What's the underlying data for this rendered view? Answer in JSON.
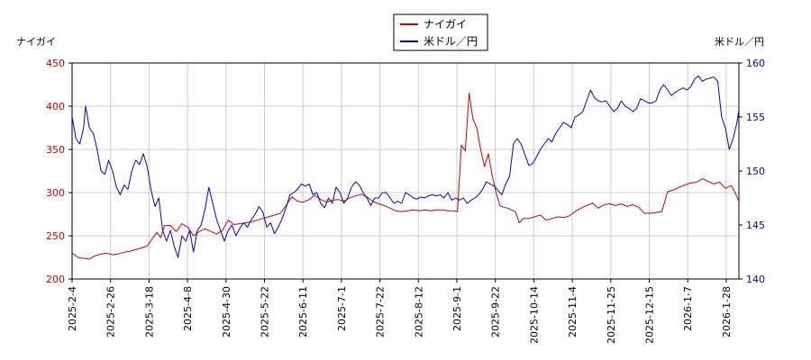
{
  "chart_data": {
    "type": "line",
    "left_axis_title": "ナイガイ",
    "right_axis_title": "米ドル／円",
    "left_axis": {
      "range": [
        200,
        450
      ],
      "ticks": [
        "200",
        "250",
        "300",
        "350",
        "400",
        "450"
      ],
      "color": "#cc0000"
    },
    "right_axis": {
      "range": [
        140,
        160
      ],
      "ticks": [
        "140",
        "145",
        "150",
        "155",
        "160"
      ],
      "color": "#0000cc"
    },
    "x_ticks": [
      "2025-2-4",
      "2025-2-26",
      "2025-3-18",
      "2025-4-8",
      "2025-4-30",
      "2025-5-22",
      "2025-6-11",
      "2025-7-1",
      "2025-7-22",
      "2025-8-12",
      "2025-9-1",
      "2025-9-22",
      "2025-10-14",
      "2025-11-4",
      "2025-11-25",
      "2025-12-15",
      "2026-1-7",
      "2026-1-28"
    ],
    "grid": true,
    "legend": {
      "placement": "top-center"
    },
    "series": [
      {
        "name": "ナイガイ",
        "axis": "left",
        "color": "#cc0000",
        "points": [
          [
            0,
            230
          ],
          [
            3,
            225
          ],
          [
            6,
            224
          ],
          [
            9,
            223
          ],
          [
            12,
            227
          ],
          [
            15,
            229
          ],
          [
            18,
            230
          ],
          [
            21,
            228
          ],
          [
            24,
            229
          ],
          [
            27,
            231
          ],
          [
            30,
            232
          ],
          [
            33,
            234
          ],
          [
            36,
            236
          ],
          [
            39,
            238
          ],
          [
            42,
            248
          ],
          [
            44,
            254
          ],
          [
            46,
            248
          ],
          [
            48,
            262
          ],
          [
            51,
            262
          ],
          [
            54,
            255
          ],
          [
            57,
            264
          ],
          [
            60,
            260
          ],
          [
            63,
            250
          ],
          [
            66,
            255
          ],
          [
            69,
            258
          ],
          [
            72,
            255
          ],
          [
            75,
            252
          ],
          [
            78,
            256
          ],
          [
            81,
            268
          ],
          [
            84,
            263
          ],
          [
            87,
            264
          ],
          [
            90,
            265
          ],
          [
            93,
            266
          ],
          [
            96,
            268
          ],
          [
            99,
            270
          ],
          [
            102,
            272
          ],
          [
            105,
            274
          ],
          [
            108,
            276
          ],
          [
            111,
            285
          ],
          [
            114,
            295
          ],
          [
            117,
            290
          ],
          [
            120,
            289
          ],
          [
            123,
            292
          ],
          [
            126,
            297
          ],
          [
            129,
            292
          ],
          [
            132,
            289
          ],
          [
            135,
            291
          ],
          [
            138,
            292
          ],
          [
            141,
            290
          ],
          [
            144,
            294
          ],
          [
            147,
            296
          ],
          [
            150,
            298
          ],
          [
            153,
            295
          ],
          [
            156,
            290
          ],
          [
            159,
            287
          ],
          [
            162,
            285
          ],
          [
            165,
            282
          ],
          [
            168,
            279
          ],
          [
            171,
            278
          ],
          [
            174,
            279
          ],
          [
            177,
            280
          ],
          [
            180,
            279
          ],
          [
            183,
            280
          ],
          [
            186,
            279
          ],
          [
            189,
            280
          ],
          [
            192,
            280
          ],
          [
            195,
            279
          ],
          [
            198,
            279
          ],
          [
            200,
            278
          ],
          [
            202,
            355
          ],
          [
            204,
            348
          ],
          [
            206,
            415
          ],
          [
            208,
            385
          ],
          [
            210,
            375
          ],
          [
            212,
            350
          ],
          [
            214,
            330
          ],
          [
            216,
            345
          ],
          [
            218,
            320
          ],
          [
            220,
            300
          ],
          [
            222,
            285
          ],
          [
            224,
            283
          ],
          [
            226,
            282
          ],
          [
            228,
            280
          ],
          [
            230,
            278
          ],
          [
            232,
            265
          ],
          [
            234,
            270
          ],
          [
            237,
            270
          ],
          [
            240,
            272
          ],
          [
            243,
            274
          ],
          [
            246,
            268
          ],
          [
            249,
            270
          ],
          [
            252,
            272
          ],
          [
            255,
            271
          ],
          [
            258,
            273
          ],
          [
            261,
            278
          ],
          [
            264,
            282
          ],
          [
            267,
            285
          ],
          [
            270,
            288
          ],
          [
            273,
            282
          ],
          [
            276,
            286
          ],
          [
            279,
            287
          ],
          [
            282,
            285
          ],
          [
            285,
            287
          ],
          [
            288,
            284
          ],
          [
            291,
            286
          ],
          [
            294,
            283
          ],
          [
            297,
            276
          ],
          [
            300,
            276
          ],
          [
            303,
            277
          ],
          [
            306,
            278
          ],
          [
            309,
            301
          ],
          [
            312,
            303
          ],
          [
            315,
            306
          ],
          [
            318,
            309
          ],
          [
            321,
            311
          ],
          [
            324,
            312
          ],
          [
            327,
            316
          ],
          [
            330,
            313
          ],
          [
            333,
            310
          ],
          [
            336,
            312
          ],
          [
            339,
            305
          ],
          [
            342,
            308
          ],
          [
            344,
            300
          ],
          [
            346,
            290
          ]
        ]
      },
      {
        "name": "米ドル／円",
        "axis": "right",
        "color": "#0000cc",
        "points": [
          [
            0,
            155
          ],
          [
            2,
            153
          ],
          [
            4,
            152.5
          ],
          [
            6,
            154
          ],
          [
            7,
            156
          ],
          [
            9,
            154
          ],
          [
            11,
            153.5
          ],
          [
            13,
            152
          ],
          [
            15,
            150
          ],
          [
            17,
            149.7
          ],
          [
            19,
            151
          ],
          [
            21,
            150
          ],
          [
            23,
            148.5
          ],
          [
            25,
            147.8
          ],
          [
            27,
            148.7
          ],
          [
            29,
            148.3
          ],
          [
            31,
            150
          ],
          [
            33,
            151
          ],
          [
            35,
            150.6
          ],
          [
            37,
            151.6
          ],
          [
            39,
            150.4
          ],
          [
            41,
            148.2
          ],
          [
            43,
            146.7
          ],
          [
            45,
            147.5
          ],
          [
            47,
            144.5
          ],
          [
            49,
            143.5
          ],
          [
            51,
            144.5
          ],
          [
            53,
            143
          ],
          [
            55,
            142
          ],
          [
            57,
            144
          ],
          [
            59,
            143.5
          ],
          [
            61,
            144.5
          ],
          [
            63,
            142.5
          ],
          [
            65,
            144.5
          ],
          [
            67,
            145
          ],
          [
            69,
            146.5
          ],
          [
            71,
            148.5
          ],
          [
            73,
            147
          ],
          [
            75,
            145.5
          ],
          [
            77,
            144.5
          ],
          [
            79,
            143.5
          ],
          [
            81,
            144.5
          ],
          [
            83,
            145
          ],
          [
            85,
            144
          ],
          [
            87,
            144.7
          ],
          [
            89,
            145.2
          ],
          [
            91,
            144.8
          ],
          [
            93,
            145.5
          ],
          [
            95,
            146
          ],
          [
            97,
            146.7
          ],
          [
            99,
            146.2
          ],
          [
            101,
            144.8
          ],
          [
            103,
            145.2
          ],
          [
            105,
            144.2
          ],
          [
            107,
            144.8
          ],
          [
            109,
            145.6
          ],
          [
            111,
            146.6
          ],
          [
            113,
            147.8
          ],
          [
            115,
            148
          ],
          [
            117,
            148.3
          ],
          [
            119,
            148.8
          ],
          [
            121,
            148.6
          ],
          [
            123,
            148.8
          ],
          [
            125,
            147.8
          ],
          [
            127,
            148
          ],
          [
            129,
            147
          ],
          [
            131,
            146.6
          ],
          [
            133,
            147.5
          ],
          [
            135,
            147
          ],
          [
            137,
            148.5
          ],
          [
            139,
            148
          ],
          [
            141,
            147
          ],
          [
            143,
            147.5
          ],
          [
            145,
            148.5
          ],
          [
            147,
            149
          ],
          [
            149,
            148.7
          ],
          [
            151,
            148
          ],
          [
            153,
            147.5
          ],
          [
            155,
            146.8
          ],
          [
            157,
            147.5
          ],
          [
            159,
            147.5
          ],
          [
            161,
            148
          ],
          [
            163,
            148
          ],
          [
            165,
            147.5
          ],
          [
            167,
            147
          ],
          [
            169,
            147.2
          ],
          [
            171,
            147
          ],
          [
            173,
            148
          ],
          [
            175,
            147.8
          ],
          [
            177,
            147.5
          ],
          [
            179,
            147.4
          ],
          [
            181,
            147.6
          ],
          [
            183,
            147.5
          ],
          [
            185,
            147.7
          ],
          [
            187,
            147.8
          ],
          [
            189,
            147.7
          ],
          [
            191,
            147.8
          ],
          [
            193,
            147.5
          ],
          [
            195,
            148
          ],
          [
            197,
            147.3
          ],
          [
            199,
            147.5
          ],
          [
            201,
            147.3
          ],
          [
            203,
            147.5
          ],
          [
            205,
            147
          ],
          [
            207,
            147.3
          ],
          [
            209,
            147.5
          ],
          [
            211,
            147.8
          ],
          [
            213,
            148.3
          ],
          [
            215,
            149
          ],
          [
            217,
            148.8
          ],
          [
            219,
            148.6
          ],
          [
            221,
            148.2
          ],
          [
            223,
            147.8
          ],
          [
            225,
            148.8
          ],
          [
            227,
            149.5
          ],
          [
            229,
            152.5
          ],
          [
            231,
            153
          ],
          [
            233,
            152.5
          ],
          [
            235,
            151.5
          ],
          [
            237,
            150.5
          ],
          [
            239,
            150.7
          ],
          [
            241,
            151.3
          ],
          [
            243,
            152
          ],
          [
            245,
            152.5
          ],
          [
            247,
            153
          ],
          [
            249,
            152.7
          ],
          [
            251,
            153.5
          ],
          [
            253,
            154
          ],
          [
            255,
            154.5
          ],
          [
            257,
            154.3
          ],
          [
            259,
            154
          ],
          [
            261,
            155
          ],
          [
            263,
            155.2
          ],
          [
            265,
            155.5
          ],
          [
            267,
            156.5
          ],
          [
            269,
            157.5
          ],
          [
            271,
            156.8
          ],
          [
            273,
            156.5
          ],
          [
            275,
            156.4
          ],
          [
            277,
            156.5
          ],
          [
            279,
            156
          ],
          [
            281,
            155.5
          ],
          [
            283,
            155.8
          ],
          [
            285,
            156.5
          ],
          [
            287,
            156
          ],
          [
            289,
            155.8
          ],
          [
            291,
            155.5
          ],
          [
            293,
            155.8
          ],
          [
            295,
            156.7
          ],
          [
            297,
            156.5
          ],
          [
            299,
            156.3
          ],
          [
            301,
            156.3
          ],
          [
            303,
            156.5
          ],
          [
            305,
            157.5
          ],
          [
            307,
            158
          ],
          [
            309,
            157.5
          ],
          [
            311,
            157
          ],
          [
            313,
            157.3
          ],
          [
            315,
            157.5
          ],
          [
            317,
            157.7
          ],
          [
            319,
            157.5
          ],
          [
            321,
            157.8
          ],
          [
            323,
            158.5
          ],
          [
            325,
            158.8
          ],
          [
            327,
            158.3
          ],
          [
            329,
            158.5
          ],
          [
            331,
            158.6
          ],
          [
            333,
            158.7
          ],
          [
            335,
            158.3
          ],
          [
            337,
            155
          ],
          [
            339,
            154
          ],
          [
            341,
            152
          ],
          [
            343,
            153
          ],
          [
            345,
            154.5
          ],
          [
            346,
            155.7
          ]
        ]
      }
    ]
  }
}
